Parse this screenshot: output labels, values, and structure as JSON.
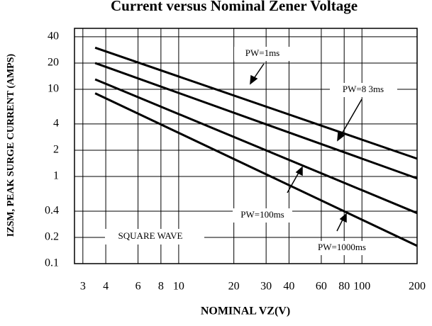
{
  "chart_data": {
    "type": "line",
    "title": "Current versus Nominal Zener Voltage",
    "xlabel": "NOMINAL VZ(V)",
    "ylabel": "IZSM, PEAK SURGE CURRENT (AMPS)",
    "log_x": true,
    "log_y": true,
    "grid": true,
    "xlim": [
      2.7,
      200
    ],
    "ylim": [
      0.1,
      50
    ],
    "xticks": [
      3,
      4,
      6,
      8,
      10,
      20,
      30,
      40,
      60,
      80,
      100,
      200
    ],
    "yticks": [
      0.1,
      0.2,
      0.4,
      1,
      2,
      4,
      10,
      20,
      40
    ],
    "annotation": "SQUARE WAVE",
    "series": [
      {
        "name": "PW=1ms",
        "color": "#000000",
        "x": [
          3.5,
          200
        ],
        "values": [
          30,
          1.6
        ]
      },
      {
        "name": "PW=8 3ms",
        "color": "#000000",
        "x": [
          3.5,
          200
        ],
        "values": [
          20,
          0.95
        ]
      },
      {
        "name": "PW=100ms",
        "color": "#000000",
        "x": [
          3.5,
          200
        ],
        "values": [
          13,
          0.38
        ]
      },
      {
        "name": "PW=1000ms",
        "color": "#000000",
        "x": [
          3.5,
          200
        ],
        "values": [
          9,
          0.16
        ]
      }
    ]
  }
}
